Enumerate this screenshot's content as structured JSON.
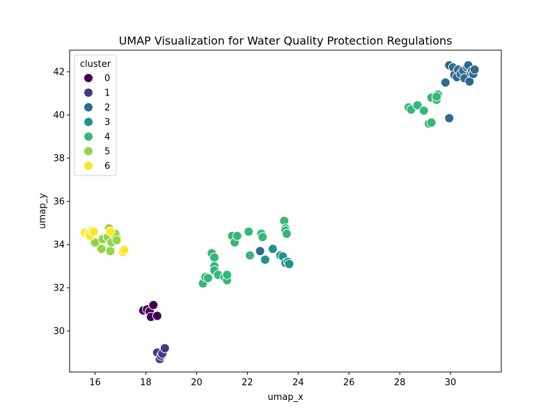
{
  "chart_data": {
    "type": "scatter",
    "title": "UMAP Visualization for Water Quality Protection Regulations",
    "xlabel": "umap_x",
    "ylabel": "umap_y",
    "xlim": [
      15.0,
      32.0
    ],
    "ylim": [
      28.1,
      43.0
    ],
    "xticks": [
      16,
      18,
      20,
      22,
      24,
      26,
      28,
      30
    ],
    "yticks": [
      30,
      32,
      34,
      36,
      38,
      40,
      42
    ],
    "grid": false,
    "legend": {
      "title": "cluster",
      "placement": "top-left"
    },
    "series": [
      {
        "name": "0",
        "color": "#440154",
        "points": [
          [
            17.9,
            30.95
          ],
          [
            18.05,
            31.0
          ],
          [
            18.15,
            30.9
          ],
          [
            18.2,
            30.65
          ],
          [
            18.3,
            31.2
          ],
          [
            18.45,
            30.7
          ]
        ]
      },
      {
        "name": "1",
        "color": "#443983",
        "points": [
          [
            18.45,
            29.0
          ],
          [
            18.55,
            28.7
          ],
          [
            18.6,
            28.85
          ],
          [
            18.65,
            28.95
          ],
          [
            18.75,
            29.2
          ]
        ]
      },
      {
        "name": "2",
        "color": "#31688e",
        "points": [
          [
            22.5,
            33.7
          ],
          [
            29.8,
            41.5
          ],
          [
            29.95,
            39.85
          ],
          [
            29.95,
            42.3
          ],
          [
            30.1,
            42.2
          ],
          [
            30.15,
            41.85
          ],
          [
            30.25,
            41.75
          ],
          [
            30.3,
            42.1
          ],
          [
            30.4,
            41.9
          ],
          [
            30.5,
            42.05
          ],
          [
            30.55,
            41.7
          ],
          [
            30.65,
            42.2
          ],
          [
            30.7,
            42.3
          ],
          [
            30.75,
            41.55
          ],
          [
            30.8,
            41.95
          ],
          [
            30.85,
            42.05
          ],
          [
            30.9,
            41.9
          ],
          [
            30.95,
            42.1
          ]
        ]
      },
      {
        "name": "3",
        "color": "#21918c",
        "points": [
          [
            22.7,
            33.3
          ],
          [
            23.0,
            33.8
          ],
          [
            23.3,
            33.5
          ],
          [
            23.4,
            33.45
          ],
          [
            23.5,
            33.15
          ],
          [
            23.6,
            33.2
          ],
          [
            23.65,
            33.1
          ]
        ]
      },
      {
        "name": "4",
        "color": "#35b779",
        "points": [
          [
            20.25,
            32.2
          ],
          [
            20.35,
            32.5
          ],
          [
            20.45,
            32.45
          ],
          [
            20.6,
            33.6
          ],
          [
            20.7,
            33.4
          ],
          [
            20.7,
            33.0
          ],
          [
            20.7,
            32.8
          ],
          [
            20.85,
            32.6
          ],
          [
            21.1,
            32.5
          ],
          [
            21.2,
            32.35
          ],
          [
            21.2,
            32.6
          ],
          [
            21.4,
            34.4
          ],
          [
            21.5,
            34.1
          ],
          [
            21.6,
            34.4
          ],
          [
            22.05,
            34.6
          ],
          [
            22.1,
            33.5
          ],
          [
            22.55,
            34.5
          ],
          [
            22.6,
            34.35
          ],
          [
            23.45,
            35.1
          ],
          [
            23.5,
            34.75
          ],
          [
            23.5,
            34.65
          ],
          [
            23.55,
            34.5
          ],
          [
            28.35,
            40.35
          ],
          [
            28.45,
            40.25
          ],
          [
            28.7,
            40.45
          ],
          [
            28.95,
            40.2
          ],
          [
            29.15,
            39.6
          ],
          [
            29.25,
            39.65
          ],
          [
            29.25,
            40.8
          ],
          [
            29.45,
            40.7
          ],
          [
            29.5,
            40.95
          ],
          [
            29.45,
            40.85
          ]
        ]
      },
      {
        "name": "5",
        "color": "#90d743",
        "points": [
          [
            16.0,
            34.1
          ],
          [
            16.25,
            33.8
          ],
          [
            16.3,
            34.25
          ],
          [
            16.5,
            34.35
          ],
          [
            16.55,
            34.75
          ],
          [
            16.6,
            33.7
          ],
          [
            16.65,
            34.1
          ],
          [
            16.75,
            34.45
          ],
          [
            16.85,
            34.35
          ],
          [
            16.8,
            34.5
          ],
          [
            16.85,
            34.2
          ]
        ]
      },
      {
        "name": "6",
        "color": "#fde725",
        "points": [
          [
            15.6,
            34.55
          ],
          [
            15.75,
            34.5
          ],
          [
            15.8,
            34.4
          ],
          [
            15.9,
            34.65
          ],
          [
            15.95,
            34.6
          ],
          [
            16.6,
            34.6
          ],
          [
            17.1,
            33.65
          ],
          [
            17.15,
            33.75
          ]
        ]
      }
    ]
  }
}
